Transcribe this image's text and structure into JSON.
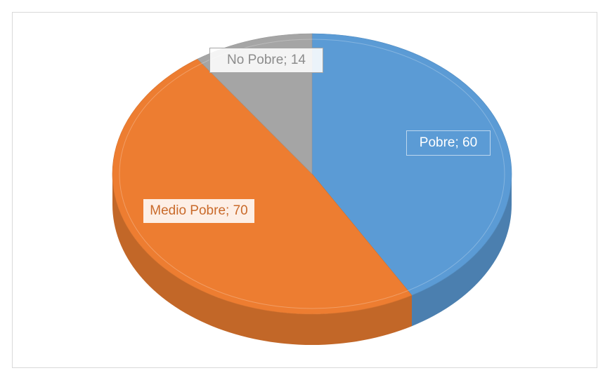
{
  "chart_data": {
    "type": "pie3d",
    "categories": [
      "Pobre",
      "Medio Pobre",
      "No Pobre"
    ],
    "values": [
      60,
      70,
      14
    ],
    "value_labels": [
      "Pobre; 60",
      "Medio Pobre; 70",
      "No Pobre; 14"
    ],
    "colors": [
      "#5b9bd5",
      "#ed7d31",
      "#a5a5a5"
    ]
  }
}
